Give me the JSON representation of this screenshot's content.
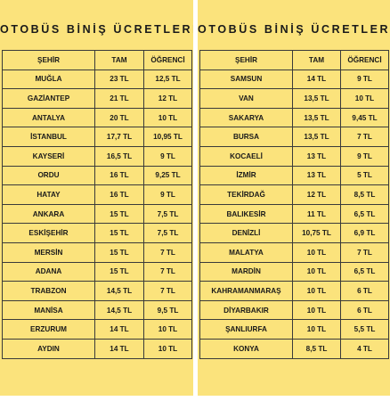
{
  "left": {
    "title": "OTOBÜS BİNİŞ ÜCRETLERİ",
    "headers": [
      "ŞEHİR",
      "TAM",
      "ÖĞRENCİ"
    ],
    "rows": [
      [
        "MUĞLA",
        "23 TL",
        "12,5 TL"
      ],
      [
        "GAZİANTEP",
        "21 TL",
        "12 TL"
      ],
      [
        "ANTALYA",
        "20 TL",
        "10 TL"
      ],
      [
        "İSTANBUL",
        "17,7 TL",
        "10,95 TL"
      ],
      [
        "KAYSERİ",
        "16,5 TL",
        "9 TL"
      ],
      [
        "ORDU",
        "16 TL",
        "9,25 TL"
      ],
      [
        "HATAY",
        "16 TL",
        "9 TL"
      ],
      [
        "ANKARA",
        "15 TL",
        "7,5 TL"
      ],
      [
        "ESKİŞEHİR",
        "15 TL",
        "7,5 TL"
      ],
      [
        "MERSİN",
        "15 TL",
        "7 TL"
      ],
      [
        "ADANA",
        "15 TL",
        "7 TL"
      ],
      [
        "TRABZON",
        "14,5 TL",
        "7 TL"
      ],
      [
        "MANİSA",
        "14,5 TL",
        "9,5 TL"
      ],
      [
        "ERZURUM",
        "14 TL",
        "10 TL"
      ],
      [
        "AYDIN",
        "14 TL",
        "10 TL"
      ]
    ]
  },
  "right": {
    "title": "OTOBÜS BİNİŞ ÜCRETLERİ",
    "headers": [
      "ŞEHİR",
      "TAM",
      "ÖĞRENCİ"
    ],
    "rows": [
      [
        "SAMSUN",
        "14 TL",
        "9 TL"
      ],
      [
        "VAN",
        "13,5 TL",
        "10 TL"
      ],
      [
        "SAKARYA",
        "13,5 TL",
        "9,45 TL"
      ],
      [
        "BURSA",
        "13,5 TL",
        "7 TL"
      ],
      [
        "KOCAELİ",
        "13 TL",
        "9 TL"
      ],
      [
        "İZMİR",
        "13 TL",
        "5 TL"
      ],
      [
        "TEKİRDAĞ",
        "12 TL",
        "8,5 TL"
      ],
      [
        "BALIKESİR",
        "11 TL",
        "6,5 TL"
      ],
      [
        "DENİZLİ",
        "10,75 TL",
        "6,9 TL"
      ],
      [
        "MALATYA",
        "10 TL",
        "7 TL"
      ],
      [
        "MARDİN",
        "10 TL",
        "6,5 TL"
      ],
      [
        "KAHRAMANMARAŞ",
        "10 TL",
        "6 TL"
      ],
      [
        "DİYARBAKIR",
        "10 TL",
        "6 TL"
      ],
      [
        "ŞANLIURFA",
        "10 TL",
        "5,5 TL"
      ],
      [
        "KONYA",
        "8,5 TL",
        "4 TL"
      ]
    ]
  }
}
